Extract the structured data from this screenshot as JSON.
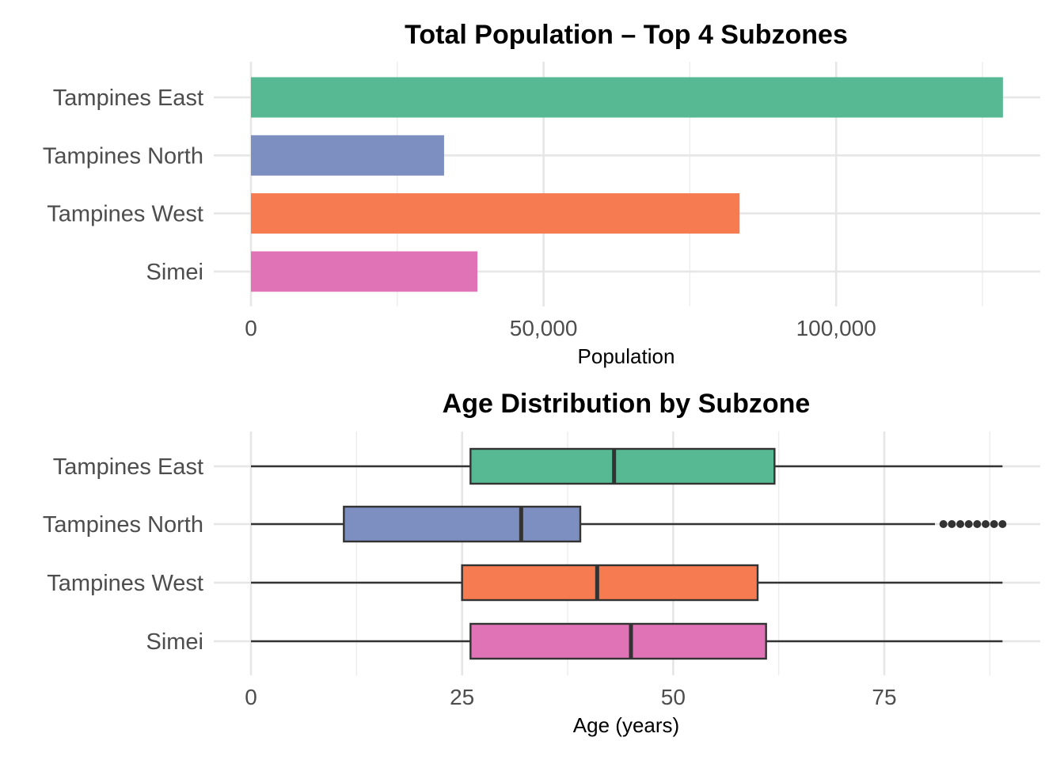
{
  "chart_data": [
    {
      "type": "bar",
      "orientation": "horizontal",
      "title": "Total Population – Top 4 Subzones",
      "xlabel": "Population",
      "ylabel": "",
      "categories": [
        "Tampines East",
        "Tampines North",
        "Tampines West",
        "Simei"
      ],
      "values": [
        128500,
        33000,
        83500,
        38700
      ],
      "colors": [
        "#57b993",
        "#7d8ec0",
        "#f67b51",
        "#e072b6"
      ],
      "xlim": [
        0,
        132000
      ],
      "xticks": [
        0,
        50000,
        100000
      ],
      "xtick_labels": [
        "0",
        "50,000",
        "100,000"
      ],
      "grid": true,
      "legend": "none"
    },
    {
      "type": "boxplot",
      "orientation": "horizontal",
      "title": "Age Distribution by Subzone",
      "xlabel": "Age (years)",
      "ylabel": "",
      "categories": [
        "Tampines East",
        "Tampines North",
        "Tampines West",
        "Simei"
      ],
      "series": [
        {
          "category": "Tampines East",
          "min": 0,
          "q1": 26,
          "median": 43,
          "q3": 62,
          "max": 89,
          "outliers": []
        },
        {
          "category": "Tampines North",
          "min": 0,
          "q1": 11,
          "median": 32,
          "q3": 39,
          "max": 81,
          "outliers": [
            82,
            83,
            84,
            85,
            86,
            87,
            88,
            89
          ]
        },
        {
          "category": "Tampines West",
          "min": 0,
          "q1": 25,
          "median": 41,
          "q3": 60,
          "max": 89,
          "outliers": []
        },
        {
          "category": "Simei",
          "min": 0,
          "q1": 26,
          "median": 45,
          "q3": 61,
          "max": 89,
          "outliers": []
        }
      ],
      "colors": [
        "#57b993",
        "#7d8ec0",
        "#f67b51",
        "#e072b6"
      ],
      "xlim": [
        -4,
        91
      ],
      "xticks": [
        0,
        25,
        50,
        75
      ],
      "xtick_labels": [
        "0",
        "25",
        "50",
        "75"
      ],
      "grid": true,
      "legend": "none"
    }
  ]
}
